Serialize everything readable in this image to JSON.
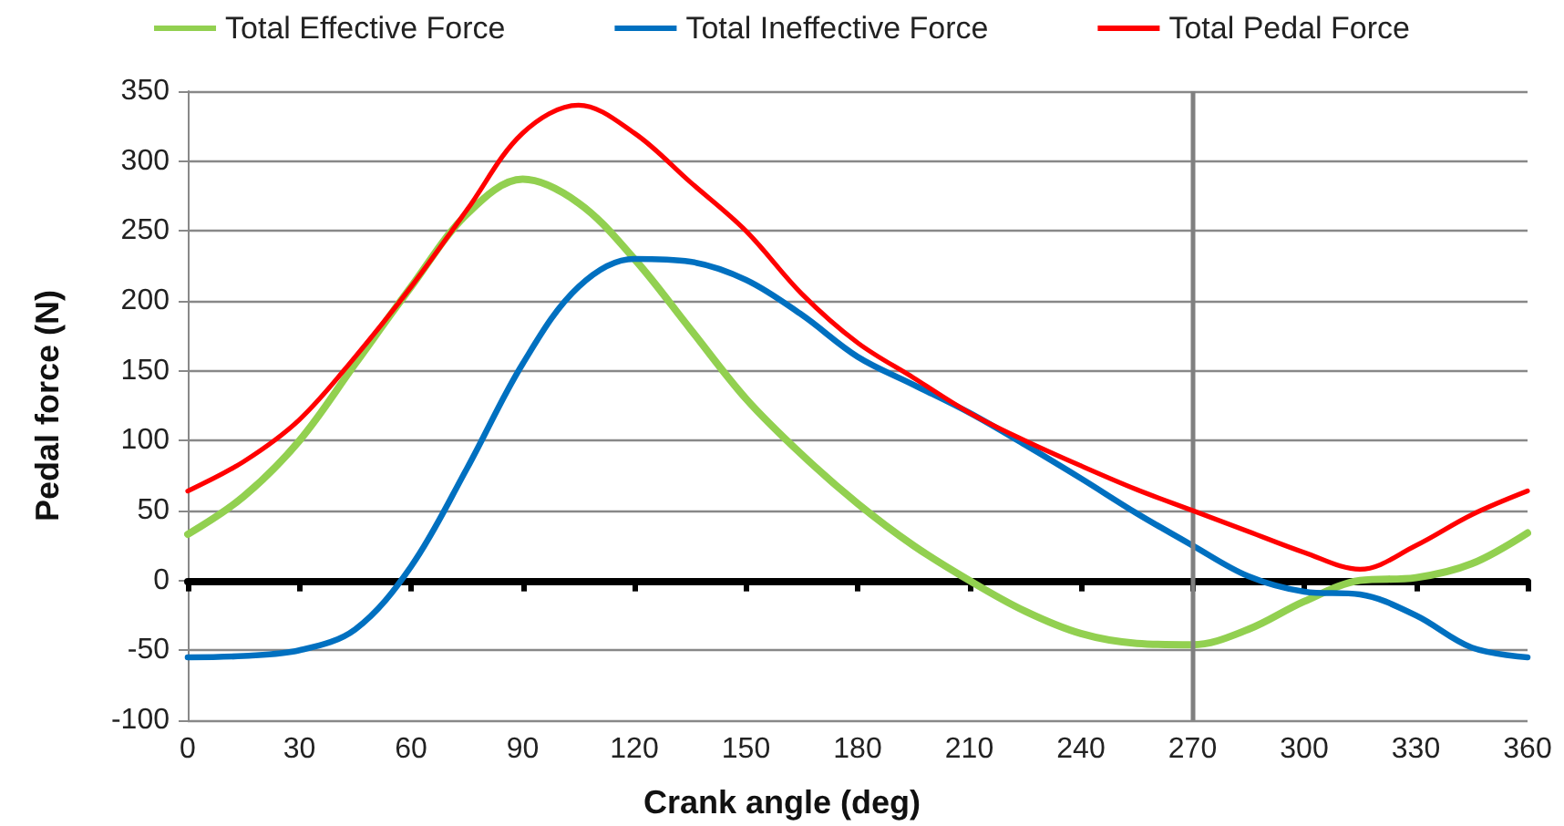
{
  "chart_data": {
    "type": "line",
    "xlabel": "Crank angle (deg)",
    "ylabel": "Pedal force (N)",
    "x": [
      0,
      15,
      30,
      45,
      60,
      75,
      90,
      105,
      120,
      135,
      150,
      165,
      180,
      195,
      210,
      225,
      240,
      255,
      270,
      285,
      300,
      315,
      330,
      345,
      360
    ],
    "series": [
      {
        "name": "Total Effective Force",
        "color": "#92d050",
        "values": [
          33,
          60,
          100,
          155,
          210,
          262,
          287,
          270,
          230,
          180,
          130,
          90,
          55,
          25,
          0,
          -22,
          -38,
          -45,
          -46,
          -35,
          -15,
          0,
          2,
          12,
          34
        ]
      },
      {
        "name": "Total Ineffective Force",
        "color": "#0070c0",
        "values": [
          -55,
          -54,
          -50,
          -35,
          10,
          80,
          155,
          210,
          230,
          228,
          215,
          190,
          160,
          140,
          120,
          97,
          73,
          48,
          25,
          3,
          -8,
          -10,
          -25,
          -48,
          -55
        ]
      },
      {
        "name": "Total Pedal Force",
        "color": "#ff0000",
        "values": [
          64,
          85,
          115,
          160,
          210,
          265,
          320,
          340,
          320,
          285,
          250,
          205,
          170,
          145,
          120,
          100,
          82,
          65,
          50,
          35,
          20,
          8,
          25,
          47,
          64
        ]
      }
    ],
    "xlim": [
      0,
      360
    ],
    "xticks": [
      0,
      30,
      60,
      90,
      120,
      150,
      180,
      210,
      240,
      270,
      300,
      330,
      360
    ],
    "ylim": [
      -100,
      350
    ],
    "yticks": [
      -100,
      -50,
      0,
      50,
      100,
      150,
      200,
      250,
      300,
      350
    ],
    "ref_lines": [
      {
        "axis": "x",
        "value": 270,
        "label": null,
        "color": "#808080"
      }
    ],
    "grid": "y",
    "legend": "top",
    "marker": "none",
    "line_style": "solid"
  }
}
